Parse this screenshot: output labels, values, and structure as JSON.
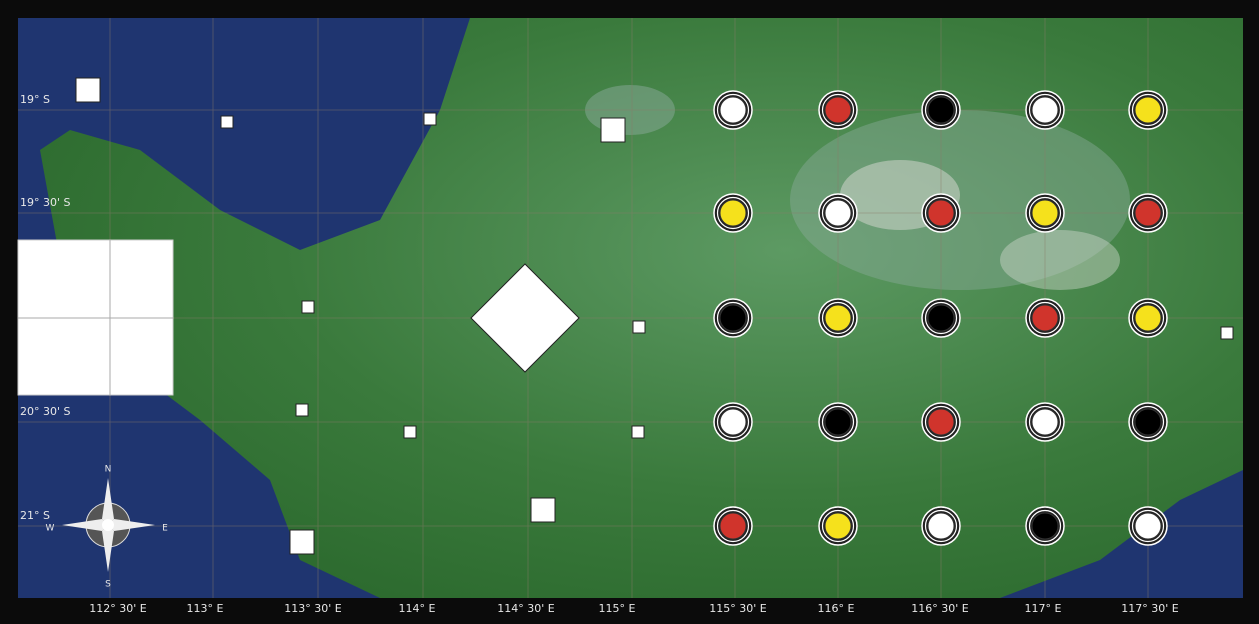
{
  "map": {
    "latitude_labels": [
      "19° S",
      "19° 30' S",
      "20° S",
      "20° 30' S",
      "21° S"
    ],
    "longitude_labels": [
      "112° 30' E",
      "113° E",
      "113° 30' E",
      "114° E",
      "114° 30' E",
      "115° E",
      "115° 30' E",
      "116° E",
      "116° 30' E",
      "117° E",
      "117° 30' E"
    ],
    "compass": {
      "north": "N",
      "east": "E",
      "south": "S",
      "west": "W"
    }
  },
  "board": {
    "rows": [
      [
        "#ffffff",
        "#d0342c",
        "#000000",
        "#ffffff",
        "#f5e11c"
      ],
      [
        "#f5e11c",
        "#ffffff",
        "#d0342c",
        "#f5e11c",
        "#d0342c"
      ],
      [
        "#000000",
        "#f5e11c",
        "#000000",
        "#d0342c",
        "#f5e11c"
      ],
      [
        "#ffffff",
        "#000000",
        "#d0342c",
        "#ffffff",
        "#000000"
      ],
      [
        "#d0342c",
        "#f5e11c",
        "#ffffff",
        "#000000",
        "#ffffff"
      ]
    ]
  }
}
